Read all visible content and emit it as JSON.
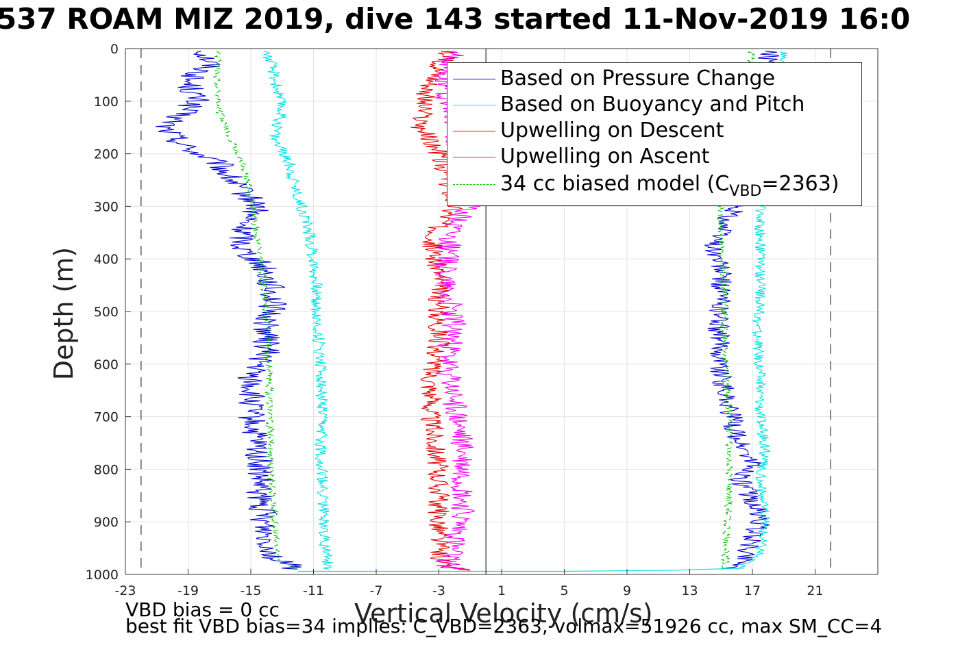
{
  "title": "537 ROAM MIZ 2019, dive 143 started 11-Nov-2019 16:0",
  "notes": {
    "line1": "VBD bias = 0 cc",
    "line2": "best fit VBD bias=34 implies: C_VBD=2363, volmax=51926 cc, max SM_CC=4"
  },
  "chart_data": {
    "type": "line",
    "xlabel": "Vertical Velocity (cm/s)",
    "ylabel": "Depth (m)",
    "xlim": [
      -23,
      25
    ],
    "ylim": [
      0,
      1000
    ],
    "y_reversed": true,
    "grid": true,
    "x_ticks": [
      "-23",
      "-19",
      "-15",
      "-11",
      "-7",
      "-3",
      "1",
      "5",
      "9",
      "13",
      "17",
      "21"
    ],
    "y_ticks": [
      "0",
      "100",
      "200",
      "300",
      "400",
      "500",
      "600",
      "700",
      "800",
      "900",
      "1000"
    ],
    "reference_lines": {
      "solid_vertical_x": 0,
      "dashed_vertical_x": [
        -22,
        22
      ]
    },
    "legend_position": "top-right",
    "legend": [
      {
        "label": "Based on Pressure Change",
        "color": "#0000d0",
        "dash": "none"
      },
      {
        "label": "Based on Buoyancy and Pitch",
        "color": "#00e0e0",
        "dash": "none"
      },
      {
        "label": "Upwelling on Descent",
        "color": "#e00000",
        "dash": "none"
      },
      {
        "label": "Upwelling on Ascent",
        "color": "#f000f0",
        "dash": "none"
      },
      {
        "label_pre": "34 cc biased model (C",
        "label_sub": "VBD",
        "label_post": "=2363)",
        "color": "#00c000",
        "dash": "12,8"
      }
    ],
    "series": [
      {
        "key": "pressure_desc",
        "color": "#0000d0",
        "dash": "none",
        "noise": 0.9,
        "depth": [
          5,
          30,
          60,
          100,
          150,
          190,
          220,
          260,
          300,
          330,
          380,
          420,
          480,
          520,
          580,
          620,
          700,
          780,
          850,
          920,
          970,
          990
        ],
        "x": [
          -18,
          -17.5,
          -19,
          -18.5,
          -20.5,
          -19,
          -17,
          -16,
          -14.5,
          -15.5,
          -15.5,
          -14,
          -13.5,
          -14,
          -14,
          -15,
          -15,
          -14.5,
          -14.5,
          -14,
          -13.5,
          -12
        ]
      },
      {
        "key": "pressure_asc",
        "color": "#0000d0",
        "dash": "none",
        "noise": 0.7,
        "depth": [
          5,
          20,
          60,
          110,
          180,
          240,
          290,
          320,
          380,
          420,
          480,
          540,
          580,
          620,
          680,
          740,
          790,
          820,
          860,
          900,
          940,
          980,
          990
        ],
        "x": [
          18,
          18,
          18,
          17.5,
          17,
          17,
          16.5,
          15.5,
          14.5,
          15,
          15,
          14.8,
          15,
          15,
          15.5,
          16,
          17,
          16.2,
          17,
          17.5,
          16.8,
          16.5,
          15
        ]
      },
      {
        "key": "buoy_desc",
        "color": "#00e0e0",
        "dash": "none",
        "noise": 0.4,
        "depth": [
          5,
          50,
          120,
          170,
          220,
          280,
          320,
          360,
          400,
          460,
          520,
          600,
          700,
          800,
          900,
          970,
          990
        ],
        "x": [
          -14,
          -13.5,
          -13,
          -13.5,
          -12.5,
          -12,
          -11.5,
          -11.2,
          -11,
          -10.8,
          -10.8,
          -10.5,
          -10.5,
          -10.5,
          -10.3,
          -10.2,
          -10
        ]
      },
      {
        "key": "buoy_asc",
        "color": "#00e0e0",
        "dash": "none",
        "noise": 0.35,
        "depth": [
          5,
          40,
          120,
          200,
          300,
          380,
          460,
          540,
          620,
          700,
          760,
          820,
          900,
          960,
          990
        ],
        "x": [
          19,
          18.5,
          18,
          17.8,
          17.5,
          17.5,
          17.5,
          17.3,
          17.5,
          17.5,
          17.8,
          17.5,
          17.8,
          17.5,
          16
        ]
      },
      {
        "key": "upwell_desc",
        "color": "#e00000",
        "dash": "none",
        "noise": 0.7,
        "depth": [
          5,
          40,
          100,
          150,
          200,
          240,
          300,
          340,
          380,
          420,
          480,
          560,
          620,
          700,
          800,
          880,
          950,
          985,
          992
        ],
        "x": [
          -2.5,
          -3,
          -4,
          -4.2,
          -3,
          -2.5,
          -2,
          -3,
          -3.5,
          -3,
          -3,
          -3,
          -3.5,
          -3.5,
          -3,
          -3,
          -3,
          -2.8,
          -1
        ]
      },
      {
        "key": "upwell_asc",
        "color": "#f000f0",
        "dash": "none",
        "noise": 0.8,
        "depth": [
          5,
          50,
          100,
          160,
          220,
          300,
          340,
          400,
          460,
          520,
          600,
          680,
          760,
          820,
          880,
          940,
          985,
          992
        ],
        "x": [
          -2,
          -2.5,
          -2.5,
          -2,
          -1.5,
          -1,
          -2,
          -2.5,
          -2.5,
          -2,
          -2.5,
          -2,
          -1.5,
          -1.5,
          -1.5,
          -2,
          -2.5,
          -1
        ]
      },
      {
        "key": "model_desc",
        "color": "#00c000",
        "dash": "7,5",
        "noise": 0.25,
        "depth": [
          5,
          60,
          120,
          160,
          220,
          280,
          320,
          380,
          440,
          520,
          600,
          700,
          800,
          900,
          970,
          990
        ],
        "x": [
          -17,
          -17.2,
          -17,
          -16.5,
          -15.5,
          -15,
          -14.8,
          -14.5,
          -14.2,
          -14,
          -13.8,
          -13.8,
          -13.7,
          -13.5,
          -13.3,
          -12
        ]
      },
      {
        "key": "model_asc",
        "color": "#00c000",
        "dash": "7,5",
        "noise": 0.25,
        "depth": [
          5,
          60,
          120,
          200,
          300,
          380,
          460,
          540,
          620,
          700,
          780,
          860,
          940,
          980,
          990
        ],
        "x": [
          17,
          16.5,
          16,
          15.5,
          15,
          15,
          15.2,
          15.2,
          15.3,
          15.5,
          15.5,
          15.5,
          15.3,
          15.3,
          15
        ]
      },
      {
        "key": "bottom_sweep",
        "color": "#00e0e0",
        "dash": "none",
        "noise": 0,
        "depth": [
          988,
          992,
          994,
          994
        ],
        "x": [
          16.5,
          12,
          5,
          -12
        ]
      }
    ]
  }
}
